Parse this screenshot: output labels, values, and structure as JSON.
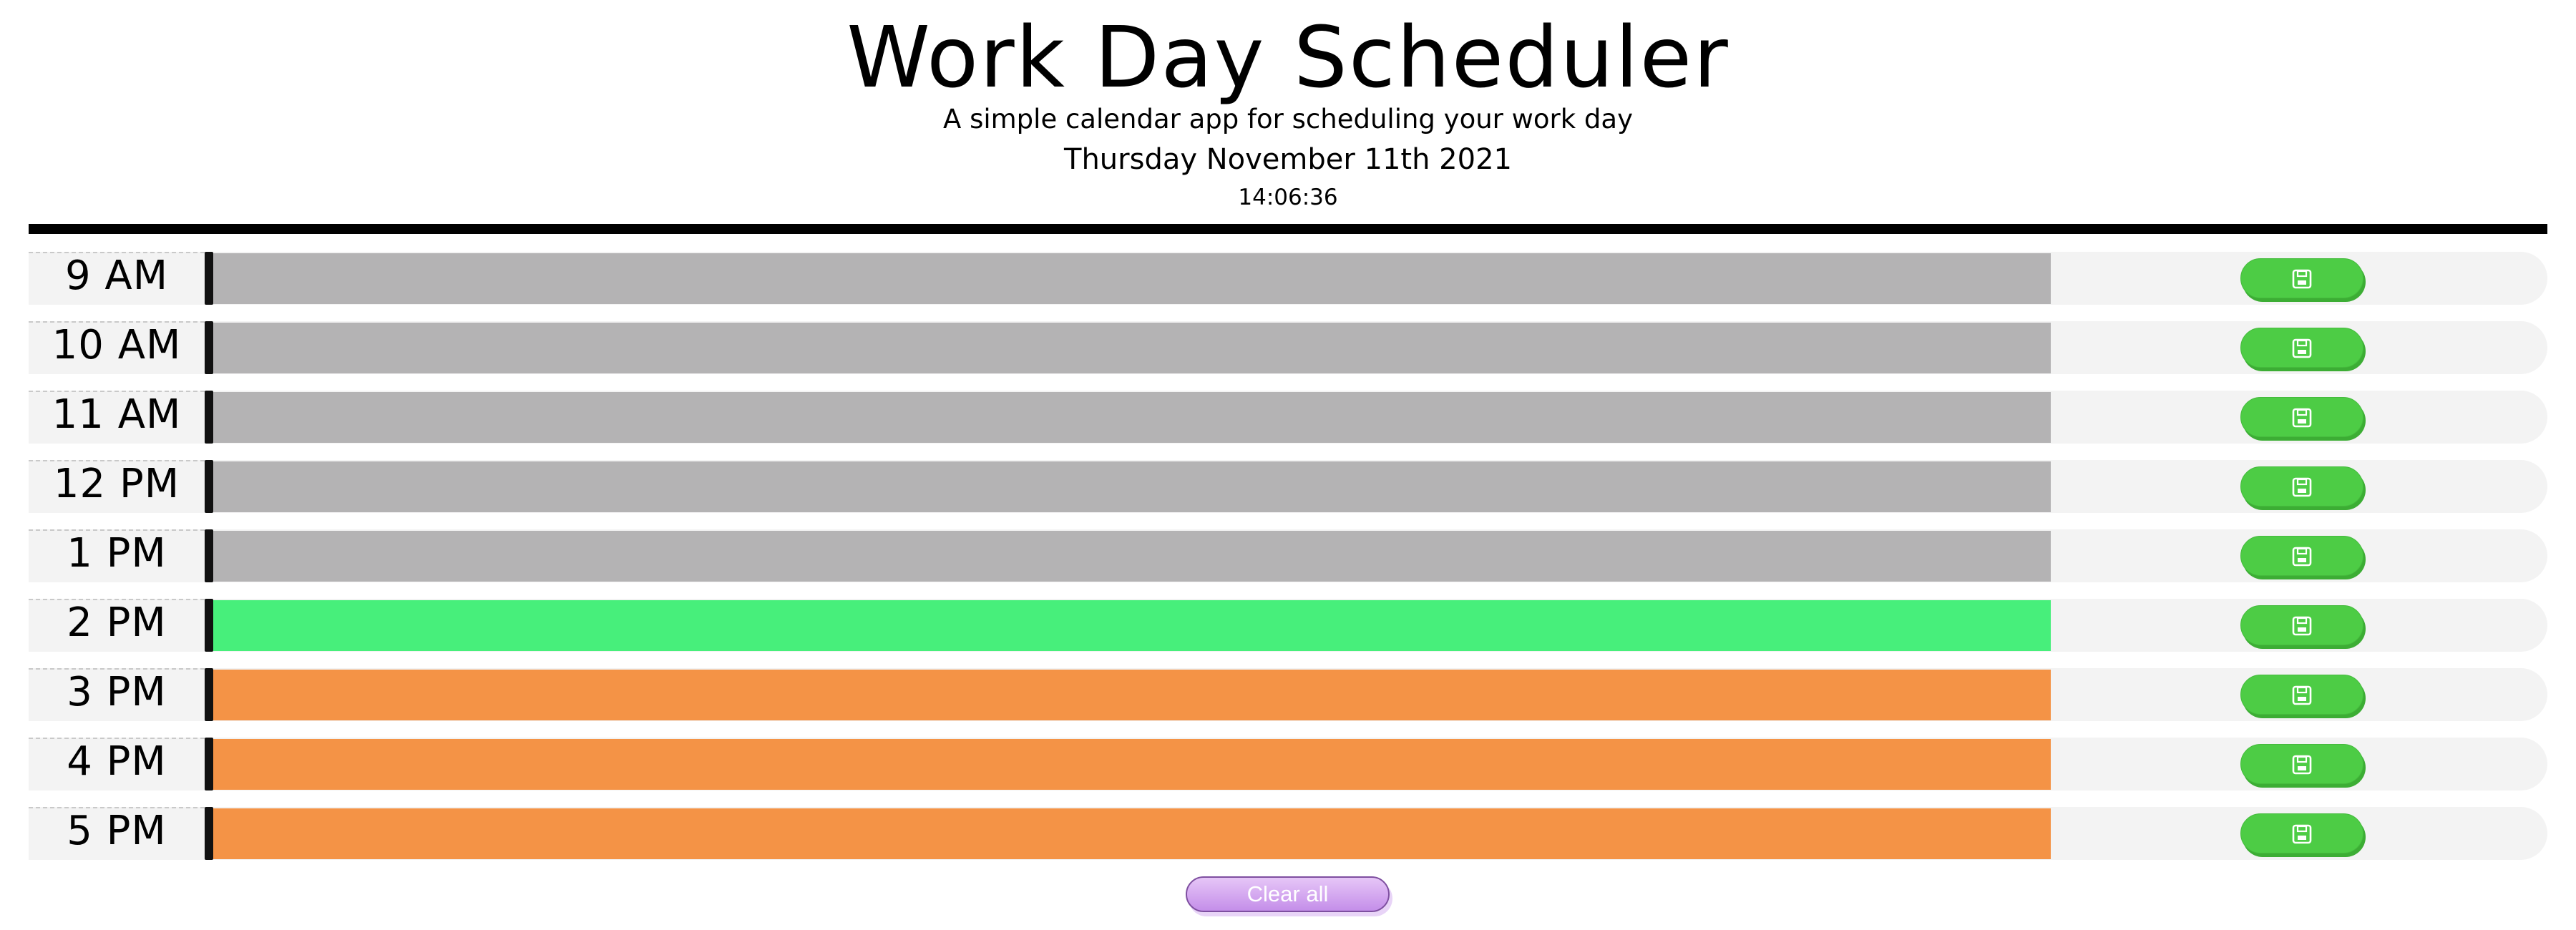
{
  "header": {
    "title": "Work Day Scheduler",
    "subtitle": "A simple calendar app for scheduling your work day",
    "date": "Thursday November 11th 2021",
    "time": "14:06:36"
  },
  "colors": {
    "past": "#b4b3b4",
    "present": "#47ef7b",
    "future": "#f49346",
    "save_button": "#4dcc45",
    "clear_button": "#c48ee9"
  },
  "timeblocks": [
    {
      "hour": "9 AM",
      "status": "past",
      "event_text": ""
    },
    {
      "hour": "10 AM",
      "status": "past",
      "event_text": ""
    },
    {
      "hour": "11 AM",
      "status": "past",
      "event_text": ""
    },
    {
      "hour": "12 PM",
      "status": "past",
      "event_text": ""
    },
    {
      "hour": "1 PM",
      "status": "past",
      "event_text": ""
    },
    {
      "hour": "2 PM",
      "status": "present",
      "event_text": ""
    },
    {
      "hour": "3 PM",
      "status": "future",
      "event_text": ""
    },
    {
      "hour": "4 PM",
      "status": "future",
      "event_text": ""
    },
    {
      "hour": "5 PM",
      "status": "future",
      "event_text": ""
    }
  ],
  "save_icon": "floppy-disk-icon",
  "clear_button_label": "Clear all"
}
